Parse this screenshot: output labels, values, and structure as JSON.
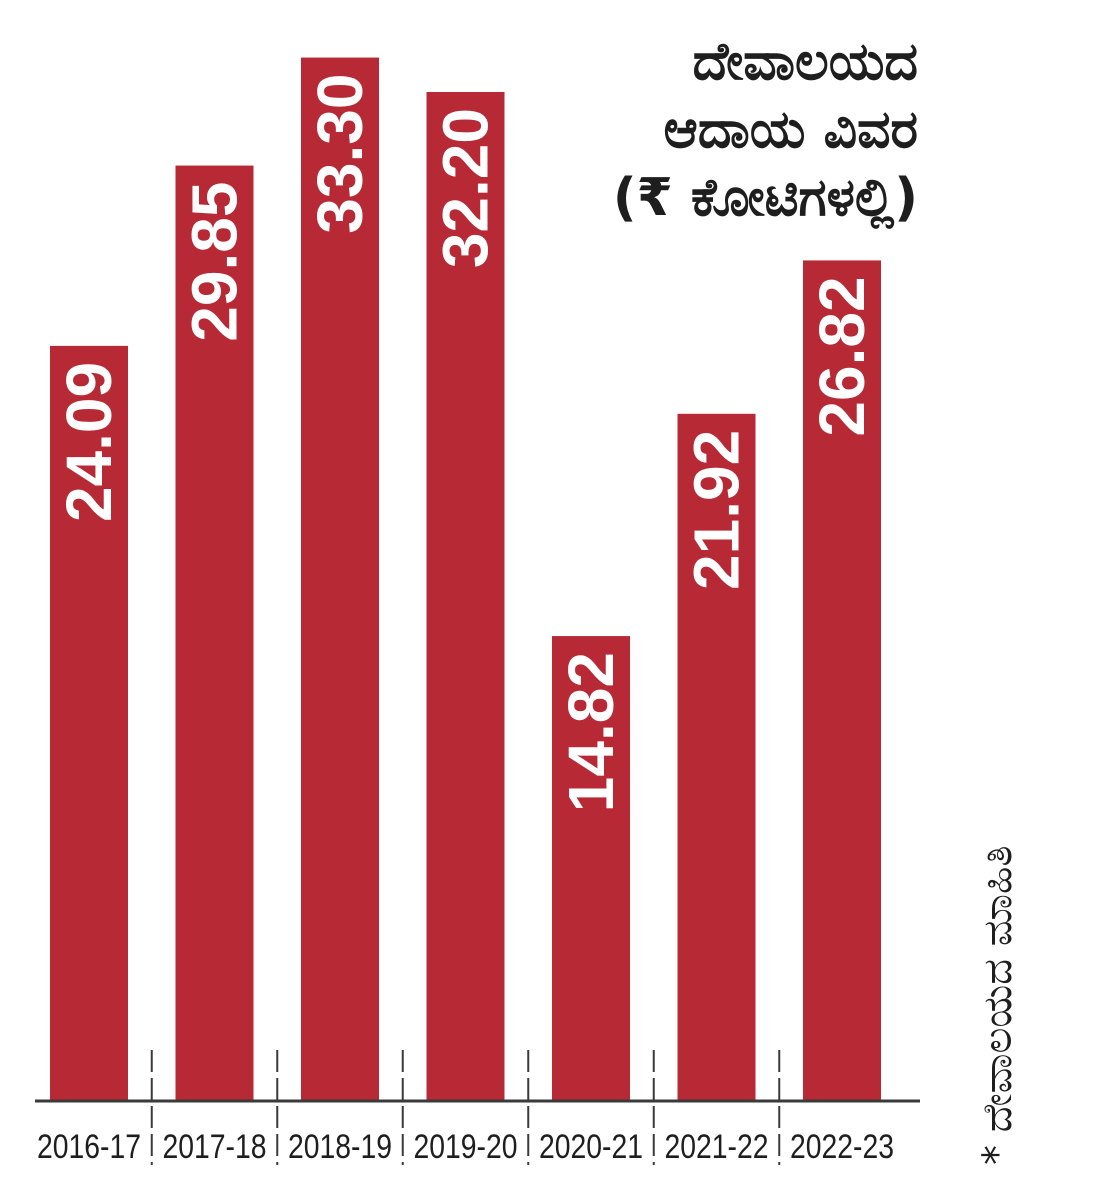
{
  "title": {
    "line1": "ದೇವಾಲಯದ",
    "line2": "ಆದಾಯ ವಿವರ",
    "line3": "(₹ ಕೋಟಿಗಳಲ್ಲಿ)"
  },
  "source_note": "* ದೇವಾಲಯದ ಮಾಹಿತಿ",
  "colors": {
    "bar": "#b72a35",
    "bar_label": "#ffffff",
    "axis": "#3a3a3a",
    "text": "#1e1e1e"
  },
  "chart_data": {
    "type": "bar",
    "categories": [
      "2016-17",
      "2017-18",
      "2018-19",
      "2019-20",
      "2020-21",
      "2021-22",
      "2022-23"
    ],
    "values": [
      24.09,
      29.85,
      33.3,
      32.2,
      14.82,
      21.92,
      26.82
    ],
    "value_labels": [
      "24.09",
      "29.85",
      "33.30",
      "32.20",
      "14.82",
      "21.92",
      "26.82"
    ],
    "title": "ದೇವಾಲಯದ ಆದಾಯ ವಿವರ (₹ ಕೋಟಿಗಳಲ್ಲಿ)",
    "xlabel": "",
    "ylabel": "",
    "ylim": [
      0,
      34.5
    ],
    "grid": false,
    "value_label_orientation": "vertical"
  }
}
